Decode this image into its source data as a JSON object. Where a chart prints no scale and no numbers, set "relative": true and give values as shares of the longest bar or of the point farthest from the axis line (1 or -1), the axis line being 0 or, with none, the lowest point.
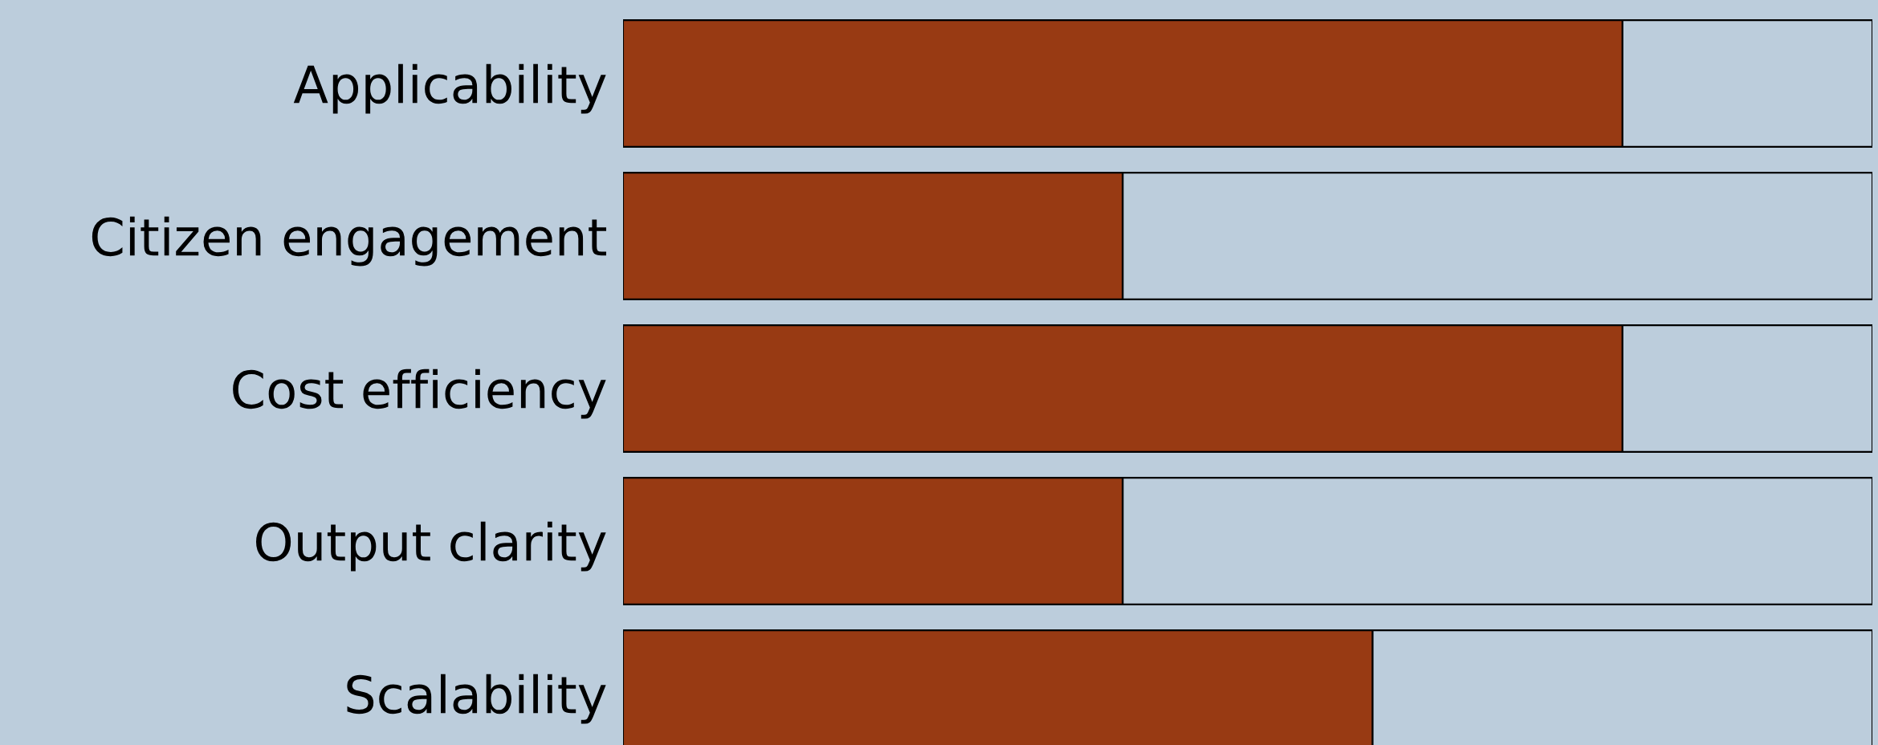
{
  "chart_data": {
    "type": "bar",
    "orientation": "horizontal",
    "stacked": true,
    "relative": true,
    "categories": [
      "Applicability",
      "Citizen engagement",
      "Cost efficiency",
      "Output clarity",
      "Scalability"
    ],
    "series": [
      {
        "color": "#983a13",
        "values": [
          0.8,
          0.4,
          0.8,
          0.4,
          0.6
        ]
      },
      {
        "color": "#bccddc",
        "values": [
          0.2,
          0.6,
          0.2,
          0.6,
          0.4
        ]
      }
    ]
  }
}
